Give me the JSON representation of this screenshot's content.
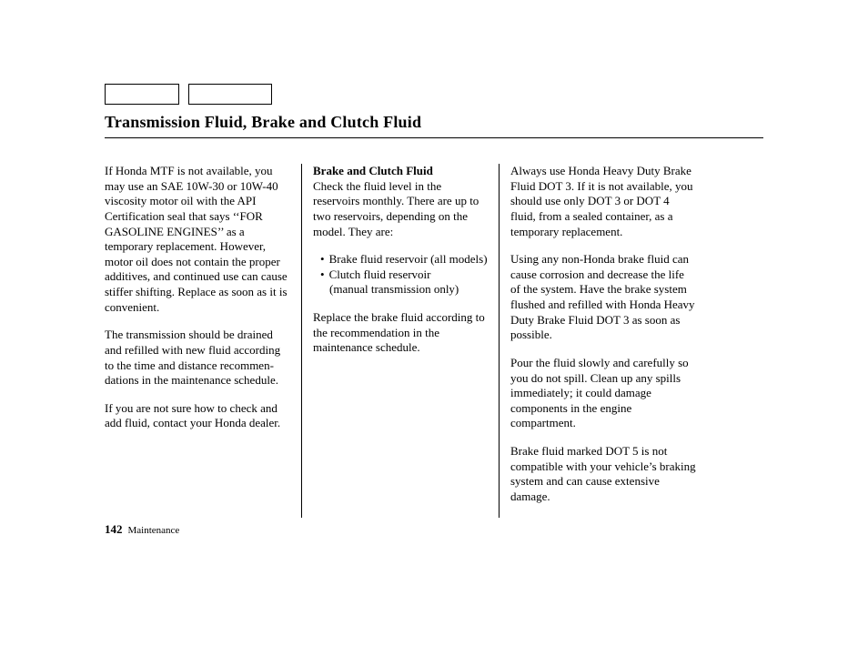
{
  "header": {
    "title": "Transmission Fluid, Brake and Clutch Fluid"
  },
  "columns": {
    "col1": {
      "p1": "If Honda MTF is not available, you may use an SAE 10W-30 or 10W-40 viscosity motor oil with the API Certification seal that says ‘‘FOR GASOLINE ENGINES’’ as a temporary replacement. However, motor oil does not contain the proper additives, and continued use can cause stiffer shifting. Replace as soon as it is convenient.",
      "p2": "The transmission should be drained and refilled with new fluid according to the time and distance recommen-dations in the maintenance schedule.",
      "p3": "If you are not sure how to check and add fluid, contact your Honda dealer."
    },
    "col2": {
      "subhead": "Brake and Clutch Fluid",
      "p1": "Check the fluid level in the reservoirs monthly. There are up to two reservoirs, depending on the model. They are:",
      "bullets": {
        "b1": "Brake fluid reservoir (all models)",
        "b2a": "Clutch fluid reservoir",
        "b2b": "(manual transmission only)"
      },
      "p2": "Replace the brake fluid according to the recommendation in the maintenance schedule."
    },
    "col3": {
      "p1": "Always use Honda Heavy Duty Brake Fluid DOT 3. If it is not available, you should use only DOT 3 or DOT 4 fluid, from a sealed container, as a temporary replacement.",
      "p2": "Using any non-Honda brake fluid can cause corrosion and decrease the life of the system. Have the brake system flushed and refilled with Honda Heavy Duty Brake Fluid DOT 3 as soon as possible.",
      "p3": "Pour the fluid slowly and carefully so you do not spill. Clean up any spills immediately; it could damage components in the engine compartment.",
      "p4": "Brake fluid marked DOT 5 is not compatible with your vehicle’s braking system and can cause extensive damage."
    }
  },
  "footer": {
    "page_number": "142",
    "section": "Maintenance"
  }
}
